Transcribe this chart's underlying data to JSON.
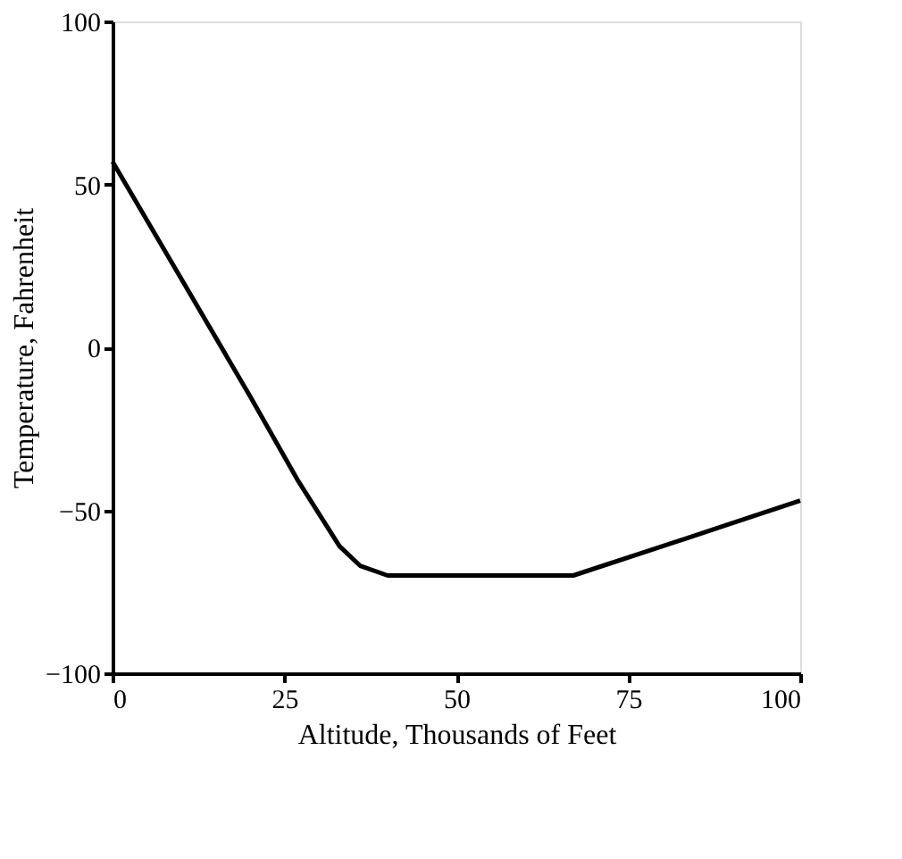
{
  "chart_data": {
    "type": "line",
    "xlabel": "Altitude, Thousands of Feet",
    "ylabel": "Temperature, Fahrenheit",
    "x": [
      0,
      10,
      20,
      27,
      30,
      33,
      36,
      40,
      50,
      60,
      67,
      80,
      90,
      100
    ],
    "series": [
      {
        "color": "#000000",
        "values": [
          57,
          21,
          -15,
          -41,
          -51,
          -61,
          -67,
          -70,
          -70,
          -70,
          -70,
          -61,
          -54,
          -47
        ]
      }
    ],
    "xlim": [
      0,
      100
    ],
    "xticks": [
      0,
      25,
      50,
      75,
      100
    ],
    "ylim": [
      -100,
      100
    ],
    "yticks": [
      -100,
      -50,
      0,
      50,
      100
    ],
    "grid": false,
    "legend": false,
    "marker": "none",
    "line_style": "solid"
  }
}
